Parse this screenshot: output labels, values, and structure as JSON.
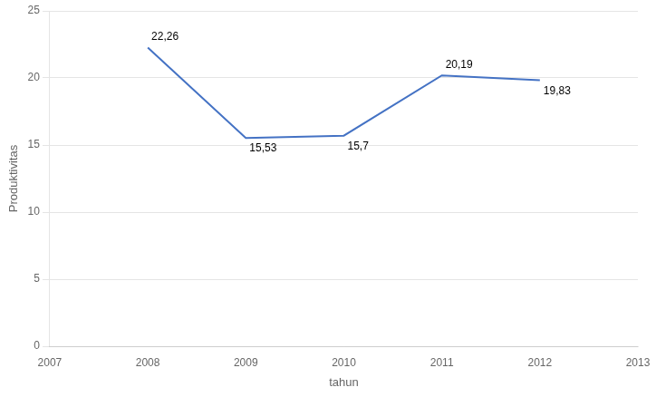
{
  "chart_data": {
    "type": "line",
    "x": [
      2008,
      2009,
      2010,
      2011,
      2012
    ],
    "values": [
      22.26,
      15.53,
      15.7,
      20.19,
      19.83
    ],
    "value_labels": [
      "22,26",
      "15,53",
      "15,7",
      "20,19",
      "19,83"
    ],
    "data_labels": true,
    "color": "#4472C4",
    "xlabel": "tahun",
    "ylabel": "Produktivitas",
    "xlim": [
      2007,
      2013
    ],
    "xticks": [
      2007,
      2008,
      2009,
      2010,
      2011,
      2012,
      2013
    ],
    "ylim": [
      0,
      25
    ],
    "yticks": [
      0,
      5,
      10,
      15,
      20,
      25
    ],
    "grid": "y"
  }
}
